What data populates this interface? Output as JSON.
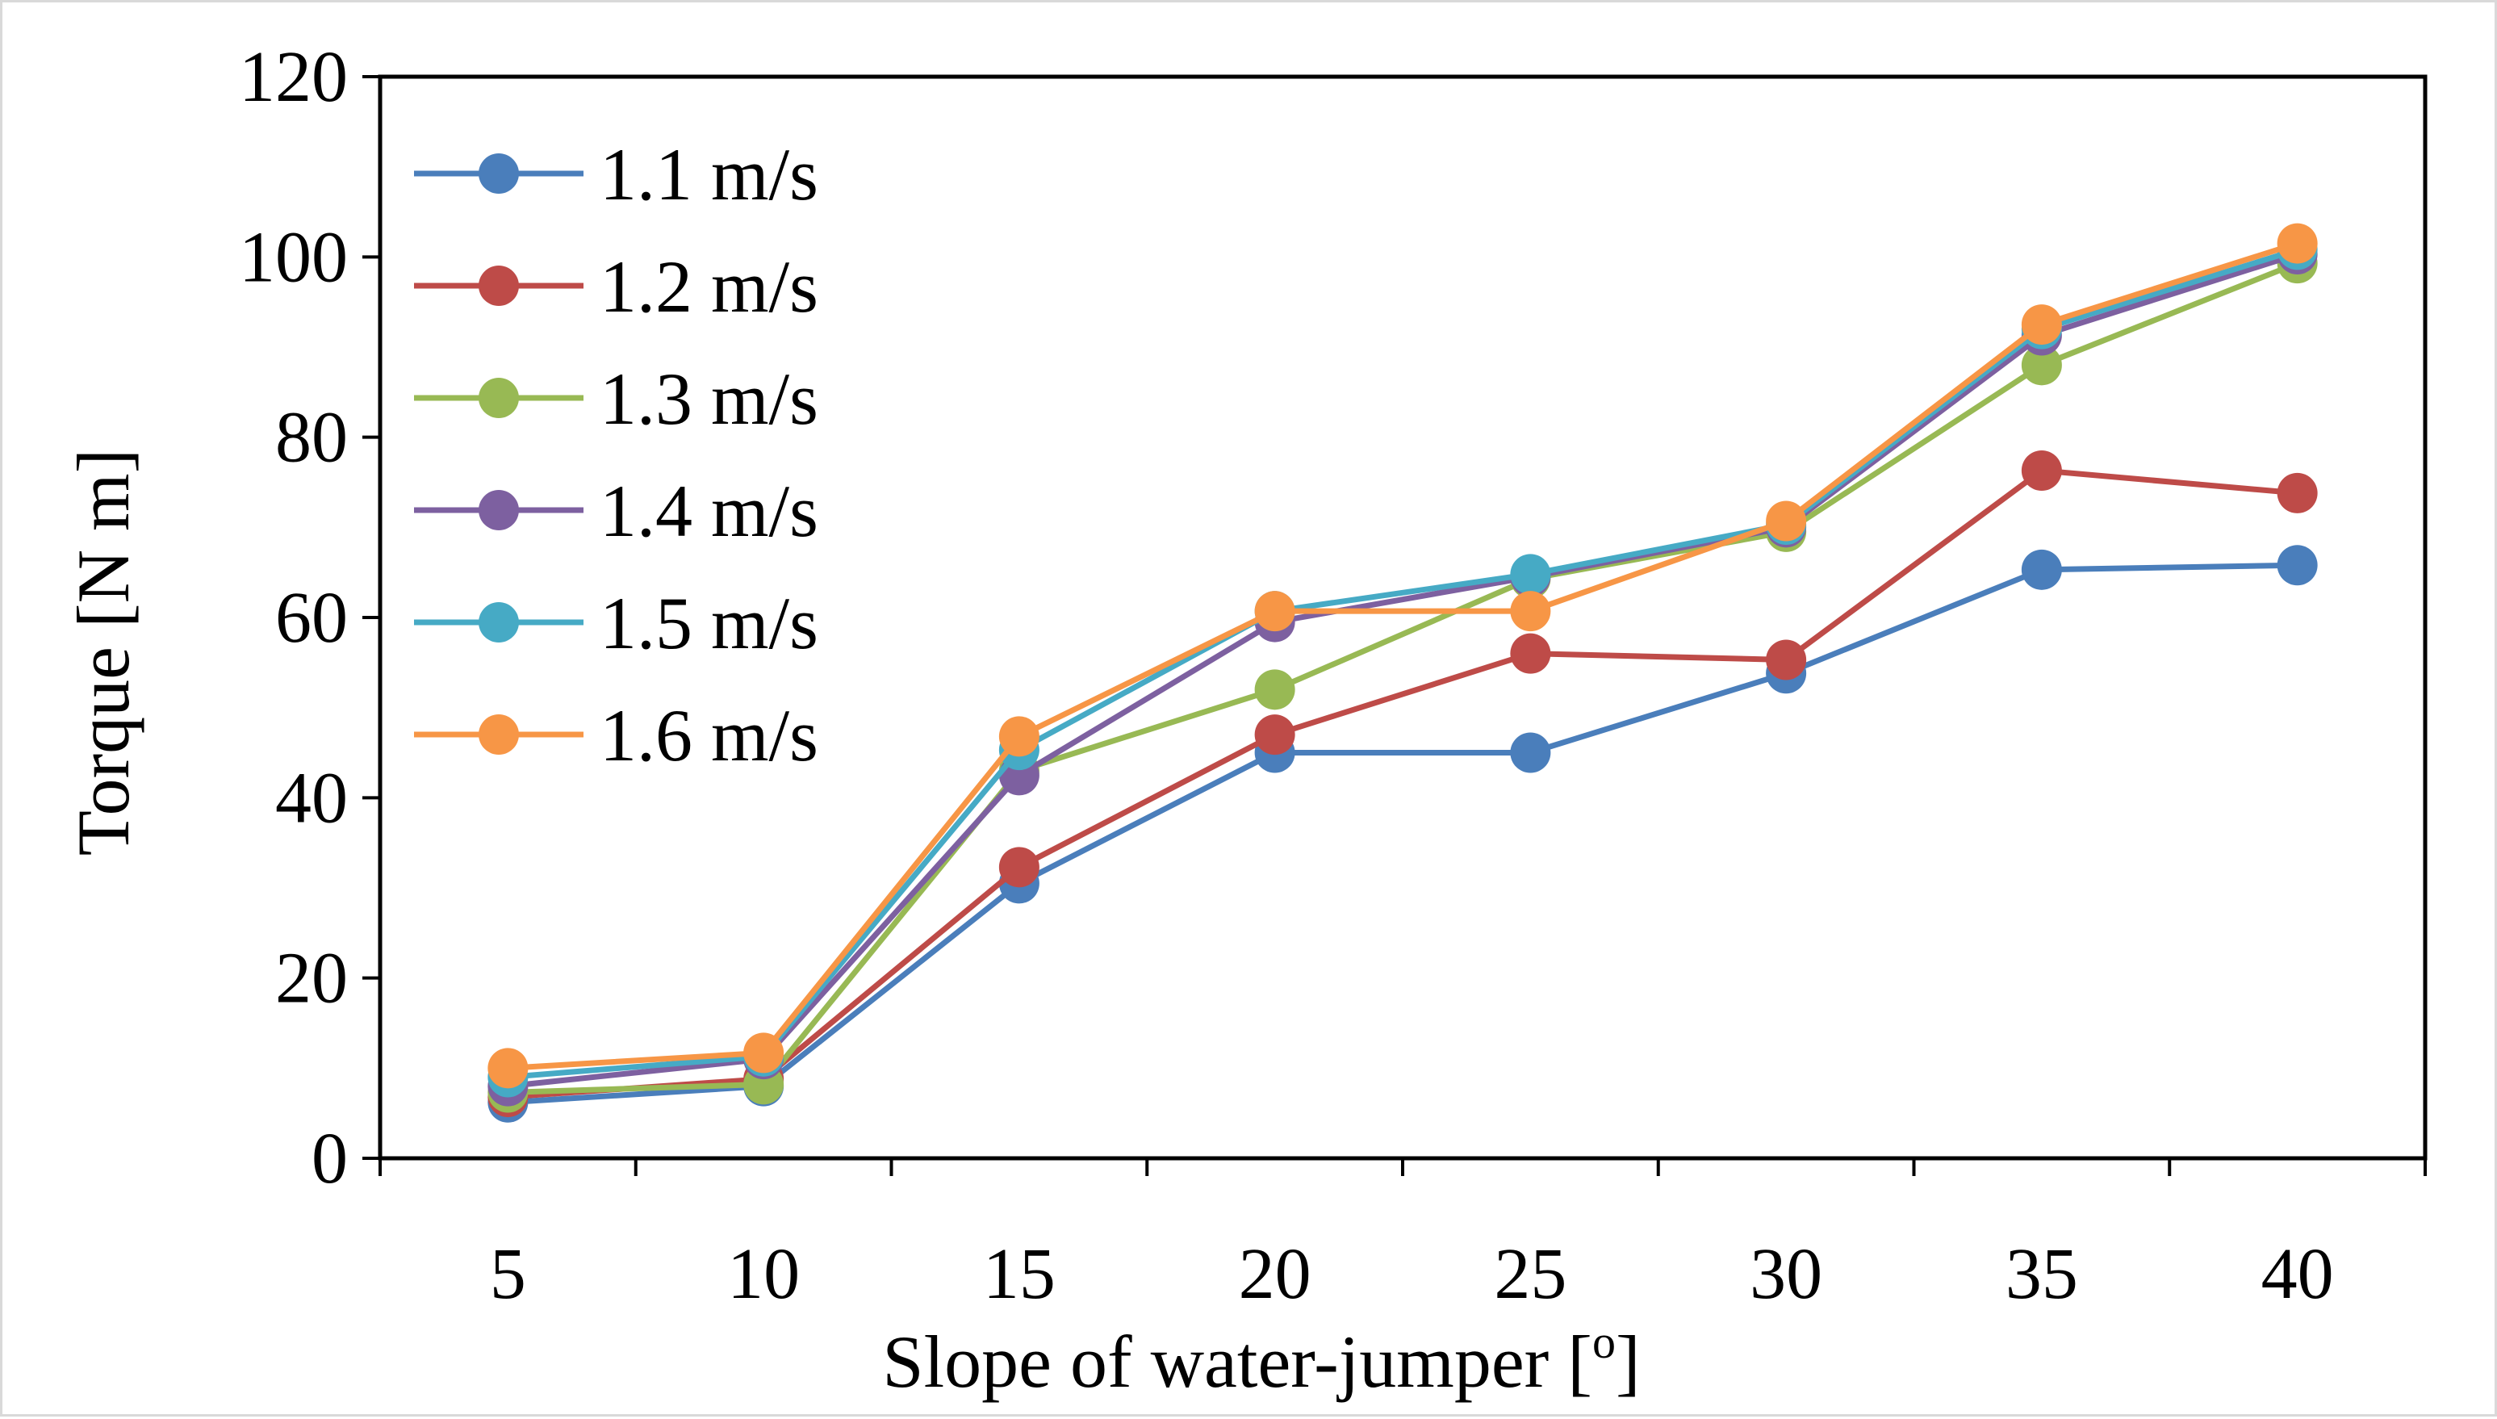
{
  "chart_data": {
    "type": "line",
    "xlabel": "Slope of water-jumper [o]",
    "xlabel_main": "Slope of water-jumper [",
    "xlabel_sup": "o",
    "xlabel_end": "]",
    "ylabel": "Torque [N m]",
    "x": [
      5,
      10,
      15,
      20,
      25,
      30,
      35,
      40
    ],
    "x_tick_labels": [
      "5",
      "10",
      "15",
      "20",
      "25",
      "30",
      "35",
      "40"
    ],
    "y_tick_labels": [
      "0",
      "20",
      "40",
      "60",
      "80",
      "100",
      "120"
    ],
    "ylim": [
      0,
      120
    ],
    "grid": false,
    "legend_position": "top-left",
    "series": [
      {
        "name": "1.1 m/s",
        "color": "#4a7ebb",
        "values": [
          6.2,
          8.0,
          30.5,
          45.0,
          45.0,
          53.8,
          65.3,
          65.8
        ]
      },
      {
        "name": "1.2 m/s",
        "color": "#be4b48",
        "values": [
          6.8,
          8.8,
          32.3,
          47.0,
          56.0,
          55.3,
          76.3,
          73.8
        ]
      },
      {
        "name": "1.3 m/s",
        "color": "#98b954",
        "values": [
          7.3,
          8.2,
          43.0,
          52.0,
          64.3,
          69.5,
          88.0,
          99.3
        ]
      },
      {
        "name": "1.4 m/s",
        "color": "#7d60a0",
        "values": [
          8.0,
          11.0,
          42.5,
          59.5,
          64.5,
          70.0,
          91.3,
          100.3
        ]
      },
      {
        "name": "1.5 m/s",
        "color": "#46aac5",
        "values": [
          9.0,
          11.3,
          45.3,
          60.7,
          64.8,
          70.3,
          92.0,
          100.8
        ]
      },
      {
        "name": "1.6 m/s",
        "color": "#f79646",
        "values": [
          10.0,
          11.7,
          46.8,
          60.7,
          60.7,
          70.7,
          92.5,
          101.5
        ]
      }
    ]
  }
}
